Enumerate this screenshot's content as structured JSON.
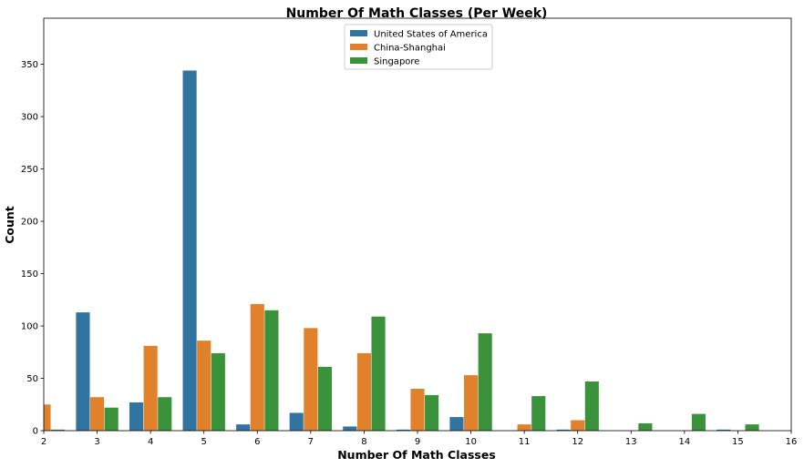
{
  "chart_data": {
    "type": "bar",
    "title": "Number Of Math Classes (Per Week)",
    "xlabel": "Number Of Math Classes",
    "ylabel": "Count",
    "x": [
      2,
      3,
      4,
      5,
      6,
      7,
      8,
      9,
      10,
      11,
      12,
      13,
      14,
      15
    ],
    "xticks": [
      2,
      3,
      4,
      5,
      6,
      7,
      8,
      9,
      10,
      11,
      12,
      13,
      14,
      15,
      16
    ],
    "xlim": [
      2,
      16
    ],
    "yticks": [
      0,
      50,
      100,
      150,
      200,
      250,
      300,
      350
    ],
    "ylim": [
      0,
      394
    ],
    "grid": false,
    "legend_position": "top-center",
    "series": [
      {
        "name": "United States of America",
        "color": "#3274a1",
        "values": [
          null,
          113,
          27,
          344,
          6,
          17,
          4,
          1,
          13,
          null,
          1,
          null,
          null,
          1
        ]
      },
      {
        "name": "China-Shanghai",
        "color": "#e1812c",
        "values": [
          25,
          32,
          81,
          86,
          121,
          98,
          74,
          40,
          53,
          6,
          10,
          null,
          null,
          null
        ]
      },
      {
        "name": "Singapore",
        "color": "#3a923a",
        "values": [
          1,
          22,
          32,
          74,
          115,
          61,
          109,
          34,
          93,
          33,
          47,
          7,
          16,
          6
        ]
      }
    ]
  }
}
